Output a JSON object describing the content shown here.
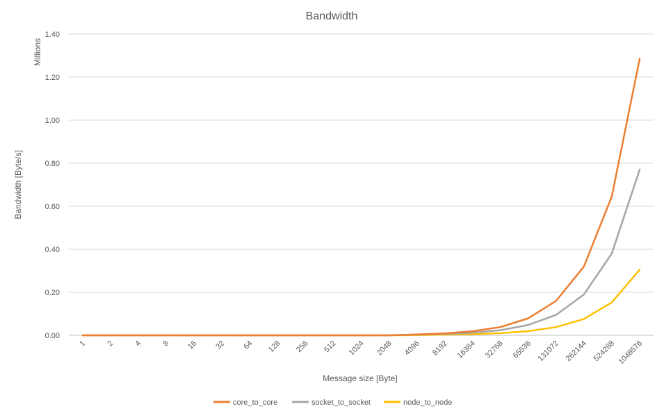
{
  "chart_data": {
    "type": "line",
    "title": "Bandwidth",
    "xlabel": "Message size [Byte]",
    "ylabel": "Bandwidth [Byte/s]",
    "y_units_label": "Millions",
    "ylim": [
      0,
      1.4
    ],
    "y_ticks": [
      "0.00",
      "0.20",
      "0.40",
      "0.60",
      "0.80",
      "1.00",
      "1.20",
      "1.40"
    ],
    "grid": true,
    "legend_position": "bottom",
    "categories": [
      "1",
      "2",
      "4",
      "8",
      "16",
      "32",
      "64",
      "128",
      "256",
      "512",
      "1024",
      "2048",
      "4096",
      "8192",
      "16384",
      "32768",
      "65536",
      "131072",
      "262144",
      "524288",
      "1048576"
    ],
    "series": [
      {
        "name": "core_to_core",
        "color": "#ED7D31",
        "values": [
          0,
          0,
          0,
          0,
          0,
          0,
          0,
          0,
          0,
          0,
          0,
          0,
          0.004,
          0.009,
          0.019,
          0.038,
          0.079,
          0.16,
          0.32,
          0.645,
          1.285
        ]
      },
      {
        "name": "socket_to_socket",
        "color": "#A5A5A5",
        "values": [
          0,
          0,
          0,
          0,
          0,
          0,
          0,
          0,
          0,
          0,
          0,
          0,
          0.003,
          0.006,
          0.012,
          0.024,
          0.048,
          0.095,
          0.19,
          0.38,
          0.77
        ]
      },
      {
        "name": "node_to_node",
        "color": "#FFC000",
        "values": [
          0,
          0,
          0,
          0,
          0,
          0,
          0,
          0,
          0,
          0,
          0,
          0,
          0.001,
          0.003,
          0.005,
          0.01,
          0.019,
          0.038,
          0.076,
          0.153,
          0.305
        ]
      }
    ]
  }
}
